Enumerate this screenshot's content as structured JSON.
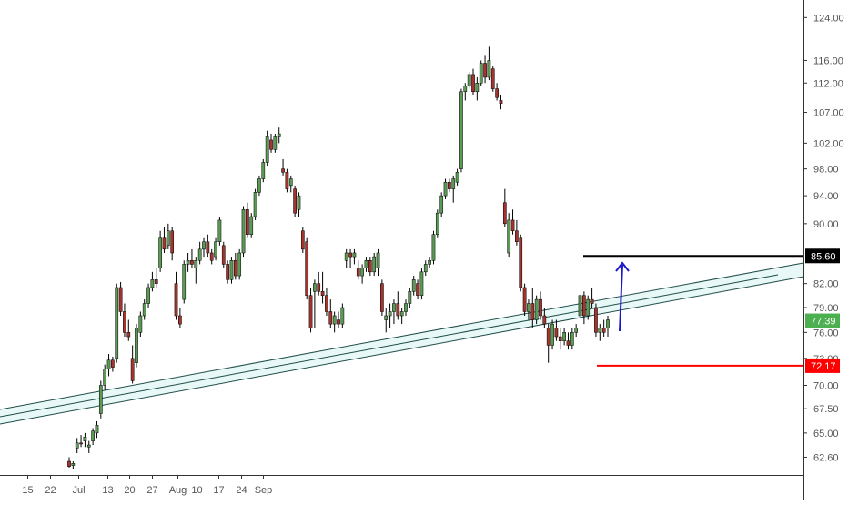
{
  "colors": {
    "up": "#26a69a",
    "down": "#ef5350",
    "body_up": "#5b9a55",
    "body_down": "#a3352f",
    "wick": "#000000",
    "axis_text": "#555555",
    "axis_line": "#333333",
    "channel_fill": "#e8f8f7",
    "channel_line": "#1f4d4a",
    "resistance": "#000000",
    "support": "#ff0000",
    "arrow": "#1a1ac8",
    "last_price": "#4caf50"
  },
  "chart_data": {
    "type": "candlestick",
    "title": "",
    "xlabel": "",
    "ylabel": "",
    "scale": "log",
    "ylim": [
      61.5,
      126
    ],
    "x_ticks": [
      "15",
      "22",
      "Jul",
      "13",
      "20",
      "27",
      "Aug",
      "10",
      "17",
      "24",
      "Sep"
    ],
    "y_ticks": [
      "124.00",
      "116.00",
      "112.00",
      "107.00",
      "102.00",
      "98.00",
      "94.00",
      "90.00",
      "85.60",
      "82.00",
      "79.00",
      "77.39",
      "76.00",
      "73.00",
      "72.17",
      "70.00",
      "67.50",
      "65.00",
      "62.60"
    ],
    "price_labels": [
      {
        "value": 85.6,
        "text": "85.60",
        "color": "#000000"
      },
      {
        "value": 77.39,
        "text": "77.39",
        "color": "#4caf50"
      },
      {
        "value": 72.17,
        "text": "72.17",
        "color": "#ff0000"
      }
    ],
    "levels": [
      {
        "name": "resistance",
        "value": 85.6
      },
      {
        "name": "support",
        "value": 72.17
      }
    ],
    "candles": [
      [
        62.2,
        62.6,
        61.6,
        61.7
      ],
      [
        61.8,
        62.2,
        61.5,
        62.0
      ],
      [
        63.5,
        64.5,
        63.0,
        64.0
      ],
      [
        64.0,
        64.8,
        63.6,
        63.9
      ],
      [
        64.2,
        65.0,
        63.6,
        64.6
      ],
      [
        63.6,
        64.2,
        63.0,
        63.8
      ],
      [
        64.2,
        65.5,
        63.8,
        65.2
      ],
      [
        65.0,
        66.2,
        64.5,
        65.8
      ],
      [
        67.0,
        70.5,
        66.5,
        70.0
      ],
      [
        70.0,
        72.3,
        69.5,
        71.8
      ],
      [
        71.8,
        73.5,
        71.0,
        72.8
      ],
      [
        72.8,
        73.2,
        71.5,
        72.0
      ],
      [
        73.0,
        82.0,
        72.5,
        81.5
      ],
      [
        81.5,
        82.2,
        78.0,
        78.5
      ],
      [
        78.5,
        79.5,
        75.5,
        76.0
      ],
      [
        76.0,
        77.5,
        75.0,
        75.5
      ],
      [
        73.0,
        74.5,
        70.2,
        70.5
      ],
      [
        72.5,
        77.0,
        72.0,
        76.5
      ],
      [
        76.0,
        78.5,
        75.5,
        78.0
      ],
      [
        78.0,
        80.0,
        77.5,
        79.5
      ],
      [
        79.5,
        82.0,
        79.0,
        81.5
      ],
      [
        81.5,
        83.5,
        81.0,
        82.5
      ],
      [
        82.5,
        84.0,
        81.5,
        82.0
      ],
      [
        84.0,
        89.0,
        83.5,
        88.0
      ],
      [
        88.0,
        89.5,
        86.0,
        86.5
      ],
      [
        87.0,
        90.0,
        86.5,
        89.0
      ],
      [
        89.0,
        89.5,
        85.0,
        86.0
      ],
      [
        82.0,
        83.5,
        77.5,
        78.0
      ],
      [
        78.0,
        79.0,
        76.5,
        77.0
      ],
      [
        80.0,
        85.0,
        79.5,
        84.5
      ],
      [
        84.5,
        86.0,
        83.5,
        85.0
      ],
      [
        85.0,
        86.5,
        84.0,
        84.5
      ],
      [
        84.0,
        85.5,
        82.0,
        85.0
      ],
      [
        85.0,
        87.5,
        84.5,
        86.5
      ],
      [
        86.5,
        88.0,
        85.5,
        87.5
      ],
      [
        87.5,
        88.5,
        85.5,
        86.0
      ],
      [
        86.0,
        86.5,
        84.5,
        85.0
      ],
      [
        85.5,
        88.0,
        85.0,
        87.5
      ],
      [
        87.5,
        91.0,
        87.0,
        90.5
      ],
      [
        87.0,
        87.5,
        84.0,
        84.5
      ],
      [
        84.5,
        85.0,
        82.0,
        82.5
      ],
      [
        82.5,
        85.5,
        82.0,
        85.0
      ],
      [
        85.0,
        86.0,
        82.5,
        83.0
      ],
      [
        83.0,
        86.5,
        82.5,
        86.0
      ],
      [
        86.0,
        92.5,
        85.5,
        92.0
      ],
      [
        92.0,
        93.0,
        88.0,
        88.5
      ],
      [
        88.5,
        91.5,
        88.0,
        91.0
      ],
      [
        91.0,
        95.0,
        90.5,
        94.5
      ],
      [
        94.5,
        97.0,
        94.0,
        96.5
      ],
      [
        96.5,
        99.5,
        96.0,
        99.0
      ],
      [
        99.0,
        104.0,
        98.5,
        103.0
      ],
      [
        102.5,
        103.5,
        100.5,
        101.0
      ],
      [
        101.0,
        103.5,
        100.5,
        103.0
      ],
      [
        103.0,
        104.5,
        102.0,
        103.5
      ],
      [
        98.0,
        99.5,
        97.0,
        97.5
      ],
      [
        97.5,
        98.0,
        94.5,
        95.0
      ],
      [
        95.5,
        97.0,
        94.5,
        96.5
      ],
      [
        95.0,
        95.5,
        91.0,
        91.5
      ],
      [
        92.0,
        94.5,
        91.0,
        94.0
      ],
      [
        89.0,
        89.5,
        86.0,
        86.5
      ],
      [
        87.5,
        88.0,
        80.0,
        80.5
      ],
      [
        80.5,
        81.5,
        76.0,
        76.5
      ],
      [
        81.0,
        82.5,
        76.5,
        82.0
      ],
      [
        82.0,
        83.5,
        80.5,
        81.0
      ],
      [
        81.0,
        83.5,
        79.5,
        80.5
      ],
      [
        80.5,
        81.5,
        78.0,
        78.5
      ],
      [
        78.5,
        80.0,
        76.5,
        77.0
      ],
      [
        77.0,
        78.5,
        76.0,
        78.0
      ],
      [
        77.5,
        78.5,
        76.5,
        77.0
      ],
      [
        77.0,
        79.5,
        76.5,
        79.0
      ],
      [
        85.0,
        86.5,
        84.0,
        86.0
      ],
      [
        86.0,
        86.5,
        84.0,
        85.5
      ],
      [
        85.5,
        86.5,
        84.5,
        86.0
      ],
      [
        84.0,
        85.0,
        82.5,
        83.0
      ],
      [
        83.0,
        84.5,
        82.0,
        84.0
      ],
      [
        84.0,
        85.5,
        83.5,
        85.0
      ],
      [
        85.0,
        85.5,
        83.0,
        83.5
      ],
      [
        83.5,
        86.0,
        83.0,
        85.5
      ],
      [
        84.0,
        86.5,
        83.0,
        86.0
      ],
      [
        82.0,
        82.5,
        78.0,
        78.5
      ],
      [
        77.5,
        79.0,
        76.0,
        78.0
      ],
      [
        78.0,
        79.5,
        76.5,
        78.5
      ],
      [
        78.5,
        80.0,
        77.0,
        79.5
      ],
      [
        79.5,
        81.0,
        77.5,
        78.0
      ],
      [
        78.0,
        79.0,
        77.0,
        78.5
      ],
      [
        78.5,
        80.0,
        78.0,
        79.5
      ],
      [
        79.5,
        81.5,
        79.0,
        81.0
      ],
      [
        81.0,
        83.0,
        80.5,
        82.5
      ],
      [
        82.0,
        82.5,
        80.0,
        80.5
      ],
      [
        80.5,
        84.0,
        80.0,
        83.5
      ],
      [
        83.5,
        85.0,
        83.0,
        84.5
      ],
      [
        84.5,
        85.5,
        84.0,
        85.0
      ],
      [
        85.0,
        89.0,
        84.5,
        88.5
      ],
      [
        88.5,
        92.0,
        88.0,
        91.5
      ],
      [
        91.5,
        94.5,
        91.0,
        94.0
      ],
      [
        94.0,
        96.5,
        93.5,
        96.0
      ],
      [
        96.0,
        96.5,
        94.5,
        95.0
      ],
      [
        95.0,
        97.0,
        93.0,
        96.5
      ],
      [
        96.0,
        98.0,
        95.5,
        97.5
      ],
      [
        98.0,
        111.0,
        97.5,
        110.5
      ],
      [
        110.5,
        112.0,
        109.0,
        111.5
      ],
      [
        111.5,
        114.0,
        111.0,
        113.5
      ],
      [
        113.5,
        114.5,
        110.0,
        110.5
      ],
      [
        110.5,
        113.0,
        109.0,
        112.0
      ],
      [
        112.0,
        116.0,
        111.5,
        115.5
      ],
      [
        115.5,
        117.0,
        112.0,
        113.0
      ],
      [
        113.0,
        118.5,
        112.5,
        116.0
      ],
      [
        114.5,
        115.0,
        110.5,
        111.0
      ],
      [
        111.0,
        112.0,
        109.0,
        109.5
      ],
      [
        109.0,
        110.0,
        107.5,
        108.5
      ],
      [
        93.0,
        95.0,
        89.5,
        90.0
      ],
      [
        86.0,
        91.5,
        85.5,
        90.5
      ],
      [
        90.5,
        92.0,
        88.5,
        89.0
      ],
      [
        89.0,
        90.5,
        87.0,
        87.5
      ],
      [
        88.0,
        88.5,
        81.0,
        81.5
      ],
      [
        81.5,
        82.0,
        78.0,
        78.5
      ],
      [
        78.5,
        80.0,
        77.5,
        79.5
      ],
      [
        79.5,
        81.5,
        76.5,
        77.5
      ],
      [
        77.5,
        80.5,
        77.0,
        80.0
      ],
      [
        80.0,
        81.0,
        77.5,
        78.0
      ],
      [
        78.0,
        79.0,
        76.5,
        77.0
      ],
      [
        76.5,
        77.0,
        72.5,
        74.5
      ],
      [
        74.5,
        77.5,
        74.0,
        77.0
      ],
      [
        76.5,
        77.5,
        75.0,
        75.5
      ],
      [
        75.5,
        76.5,
        74.0,
        75.0
      ],
      [
        75.0,
        76.5,
        74.5,
        76.0
      ],
      [
        75.0,
        76.0,
        74.0,
        74.5
      ],
      [
        74.5,
        76.5,
        74.0,
        76.0
      ],
      [
        76.0,
        77.0,
        75.5,
        76.5
      ],
      [
        78.0,
        81.0,
        77.5,
        80.5
      ],
      [
        80.5,
        81.0,
        77.0,
        78.0
      ],
      [
        78.0,
        80.5,
        77.5,
        80.0
      ],
      [
        80.0,
        81.5,
        79.0,
        79.5
      ],
      [
        79.0,
        79.5,
        75.5,
        76.0
      ],
      [
        76.0,
        77.0,
        75.0,
        76.5
      ],
      [
        76.5,
        77.5,
        75.5,
        76.0
      ],
      [
        76.5,
        78.0,
        75.5,
        77.5
      ]
    ]
  }
}
